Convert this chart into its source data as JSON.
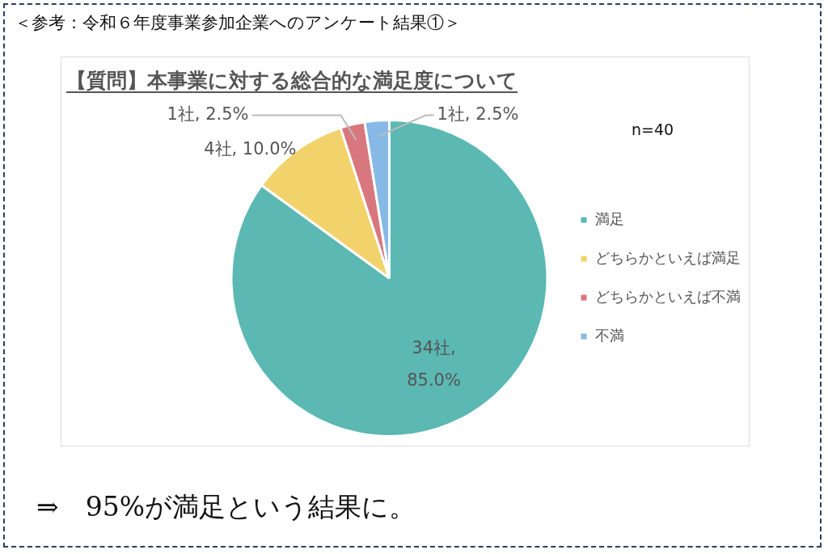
{
  "chart_data": {
    "type": "pie",
    "subtitle": "＜参考：令和６年度事業参加企業へのアンケート結果①＞",
    "title": "【質問】本事業に対する総合的な満足度について",
    "categories": [
      "満足",
      "どちらかといえば満足",
      "どちらかといえば不満",
      "不満"
    ],
    "values": [
      85,
      10,
      2.5,
      2.5
    ],
    "value_labels": [
      "34社, 85.0%",
      "4社, 10.0%",
      "1社, 2.5%",
      "1社, 2.5%"
    ],
    "colors": [
      "#5bb8b3",
      "#f2d36b",
      "#d9777f",
      "#86b9e6"
    ],
    "legend": "right",
    "annotations": [
      "n=40",
      "⇒　95%が満足という結果に。"
    ]
  }
}
